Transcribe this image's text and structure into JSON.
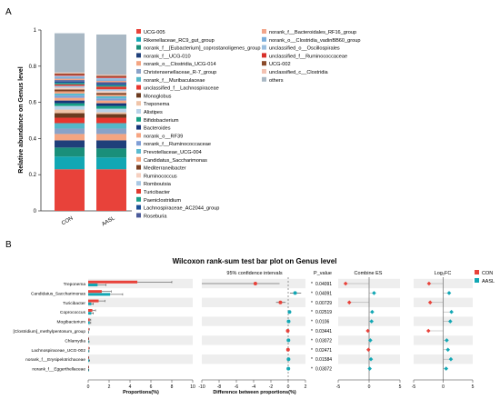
{
  "panel_a_label": "A",
  "panel_b_label": "B",
  "chart_data": [
    {
      "type": "bar",
      "stacked": true,
      "ylabel": "Relative abundance on Genus level",
      "ylim": [
        0,
        1
      ],
      "yticks": [
        "0",
        "0.2",
        "0.4",
        "0.6",
        "0.8",
        "1"
      ],
      "categories": [
        "CON",
        "AASL"
      ],
      "legend_position": "right",
      "series": [
        {
          "name": "UCG-005",
          "color": "#e8423a",
          "values": [
            0.23,
            0.23
          ]
        },
        {
          "name": "Rikenellaceae_RC9_gut_group",
          "color": "#12a7b4",
          "values": [
            0.07,
            0.065
          ]
        },
        {
          "name": "norank_f__[Eubacterium]_coprostanoligenes_group",
          "color": "#1a8f7a",
          "values": [
            0.05,
            0.05
          ]
        },
        {
          "name": "norank_f__UCG-010",
          "color": "#1f3f7a",
          "values": [
            0.04,
            0.045
          ]
        },
        {
          "name": "norank_o__Clostridia_UCG-014",
          "color": "#f4a582",
          "values": [
            0.035,
            0.035
          ]
        },
        {
          "name": "Christensenellaceae_R-7_group",
          "color": "#8aa2c8",
          "values": [
            0.03,
            0.03
          ]
        },
        {
          "name": "norank_f__Muribaculaceae",
          "color": "#55b8c8",
          "values": [
            0.03,
            0.03
          ]
        },
        {
          "name": "unclassified_f__Lachnospiraceae",
          "color": "#e8372f",
          "values": [
            0.03,
            0.03
          ]
        },
        {
          "name": "Monoglobus",
          "color": "#6b3b1f",
          "values": [
            0.025,
            0.02
          ]
        },
        {
          "name": "Treponema",
          "color": "#f0c4a8",
          "values": [
            0.02,
            0.01
          ]
        },
        {
          "name": "Alistipes",
          "color": "#b8d2e8",
          "values": [
            0.02,
            0.02
          ]
        },
        {
          "name": "Bifidobacterium",
          "color": "#16a085",
          "values": [
            0.015,
            0.015
          ]
        },
        {
          "name": "Bacteroides",
          "color": "#16357a",
          "values": [
            0.015,
            0.015
          ]
        },
        {
          "name": "norank_o__RF39",
          "color": "#f7a582",
          "values": [
            0.015,
            0.015
          ]
        },
        {
          "name": "norank_f__Ruminococcaceae",
          "color": "#7f9ed6",
          "values": [
            0.012,
            0.012
          ]
        },
        {
          "name": "Prevotellaceae_UCG-004",
          "color": "#5abbd0",
          "values": [
            0.012,
            0.012
          ]
        },
        {
          "name": "Candidatus_Saccharimonas",
          "color": "#f2a07a",
          "values": [
            0.012,
            0.008
          ]
        },
        {
          "name": "Mediterraneibacter",
          "color": "#7a3f22",
          "values": [
            0.01,
            0.01
          ]
        },
        {
          "name": "Ruminococcus",
          "color": "#f6d0c0",
          "values": [
            0.01,
            0.01
          ]
        },
        {
          "name": "Romboutsia",
          "color": "#a9c8e4",
          "values": [
            0.01,
            0.01
          ]
        },
        {
          "name": "Turicibacter",
          "color": "#e03a2f",
          "values": [
            0.008,
            0.015
          ]
        },
        {
          "name": "Paeniclostridium",
          "color": "#1a9f8a",
          "values": [
            0.008,
            0.008
          ]
        },
        {
          "name": "Lachnospiraceae_AC2044_group",
          "color": "#1c4f96",
          "values": [
            0.008,
            0.008
          ]
        },
        {
          "name": "Roseburia",
          "color": "#4a5a9a",
          "values": [
            0.008,
            0.008
          ]
        },
        {
          "name": "norank_f__Bacteroidales_RF16_group",
          "color": "#f2a58a",
          "values": [
            0.008,
            0.008
          ]
        },
        {
          "name": "norank_o__Clostridia_vadinBB60_group",
          "color": "#7aaedb",
          "values": [
            0.008,
            0.008
          ]
        },
        {
          "name": "unclassified_o__Oscillospirales",
          "color": "#9bbfdf",
          "values": [
            0.008,
            0.008
          ]
        },
        {
          "name": "unclassified_f__Ruminococcaceae",
          "color": "#d8302a",
          "values": [
            0.006,
            0.006
          ]
        },
        {
          "name": "UCG-002",
          "color": "#8a4a2a",
          "values": [
            0.006,
            0.006
          ]
        },
        {
          "name": "unclassified_c__Clostridia",
          "color": "#f3c2b2",
          "values": [
            0.006,
            0.006
          ]
        },
        {
          "name": "others",
          "color": "#a9b8c4",
          "values": [
            0.217,
            0.222
          ]
        }
      ]
    },
    {
      "type": "bar",
      "orientation": "horizontal",
      "title": "Wilcoxon rank-sum test bar plot on Genus level",
      "xlabel": "Proportions(%)",
      "xlim": [
        0,
        10
      ],
      "xticks": [
        "0",
        "2",
        "4",
        "6",
        "8",
        "10"
      ],
      "categories": [
        "Treponema",
        "Candidatus_Saccharimonas",
        "Turicibacter",
        "Coprococcus",
        "Mogibacterium",
        "[Clostridium]_methylpentosum_group",
        "Chlamydia",
        "Lachnospiraceae_UCG-002",
        "norank_f__Erysipelotrichaceae",
        "norank_f__Eggerthellaceae"
      ],
      "legend_position": "right",
      "series": [
        {
          "name": "CON",
          "color": "#e8423a",
          "values": [
            4.7,
            1.3,
            1.0,
            0.4,
            0.15,
            0.06,
            0.03,
            0.06,
            0.04,
            0.03
          ],
          "err": [
            3.3,
            0.9,
            0.6,
            0.3,
            0.1,
            0.05,
            0.03,
            0.05,
            0.03,
            0.03
          ]
        },
        {
          "name": "AASL",
          "color": "#12a7b4",
          "values": [
            0.9,
            2.1,
            0.3,
            0.3,
            0.15,
            0.02,
            0.05,
            0.05,
            0.08,
            0.04
          ],
          "err": [
            0.8,
            1.2,
            0.2,
            0.2,
            0.1,
            0.02,
            0.04,
            0.04,
            0.06,
            0.03
          ]
        }
      ]
    },
    {
      "type": "scatter",
      "title": "95% confidence intervals",
      "xlabel": "Difference between proportions(%)",
      "xlim": [
        -10,
        2
      ],
      "xticks": [
        "-10",
        "-8",
        "-6",
        "-4",
        "-2",
        "0",
        "2"
      ],
      "points": [
        {
          "label": "Treponema",
          "value": -3.8,
          "low": -10,
          "high": -1.0,
          "group": "CON"
        },
        {
          "label": "Candidatus_Saccharimonas",
          "value": 0.8,
          "low": 0.2,
          "high": 1.5,
          "group": "AASL"
        },
        {
          "label": "Turicibacter",
          "value": -0.9,
          "low": -1.4,
          "high": -0.3,
          "group": "CON"
        },
        {
          "label": "Coprococcus",
          "value": 0.15,
          "low": -0.05,
          "high": 0.35,
          "group": "AASL"
        },
        {
          "label": "Mogibacterium",
          "value": 0.05,
          "low": 0.0,
          "high": 0.1,
          "group": "AASL"
        },
        {
          "label": "[Clostridium]_methylpentosum_group",
          "value": -0.05,
          "low": -0.1,
          "high": 0.0,
          "group": "CON"
        },
        {
          "label": "Chlamydia",
          "value": 0.03,
          "low": 0.0,
          "high": 0.06,
          "group": "AASL"
        },
        {
          "label": "Lachnospiraceae_UCG-002",
          "value": -0.02,
          "low": -0.05,
          "high": 0.0,
          "group": "CON"
        },
        {
          "label": "norank_f__Erysipelotrichaceae",
          "value": 0.04,
          "low": 0.0,
          "high": 0.08,
          "group": "AASL"
        },
        {
          "label": "norank_f__Eggerthellaceae",
          "value": 0.02,
          "low": 0.0,
          "high": 0.04,
          "group": "AASL"
        }
      ]
    },
    {
      "type": "table",
      "header": "P_value",
      "values": [
        "0.04091",
        "0.04091",
        "0.00729",
        "0.02519",
        "0.0106",
        "0.03441",
        "0.03072",
        "0.02471",
        "0.01584",
        "0.03072"
      ]
    },
    {
      "type": "scatter",
      "title": "Combine ES",
      "xlim": [
        -5,
        5
      ],
      "xticks": [
        "-5",
        "0",
        "5"
      ],
      "points": [
        {
          "value": -3.8,
          "group": "CON"
        },
        {
          "value": 0.8,
          "group": "AASL"
        },
        {
          "value": -3.2,
          "group": "CON"
        },
        {
          "value": 0.5,
          "group": "AASL"
        },
        {
          "value": 0.4,
          "group": "AASL"
        },
        {
          "value": -0.2,
          "group": "CON"
        },
        {
          "value": 0.2,
          "group": "AASL"
        },
        {
          "value": -0.1,
          "group": "CON"
        },
        {
          "value": 0.3,
          "group": "AASL"
        },
        {
          "value": 0.1,
          "group": "AASL"
        }
      ]
    },
    {
      "type": "scatter",
      "title": "Log₂FC",
      "xlim": [
        -5,
        5
      ],
      "xticks": [
        "-5",
        "0",
        "5"
      ],
      "points": [
        {
          "value": -2.4,
          "group": "CON"
        },
        {
          "value": 1.0,
          "group": "AASL"
        },
        {
          "value": -2.2,
          "group": "CON"
        },
        {
          "value": 1.4,
          "group": "AASL"
        },
        {
          "value": 1.2,
          "group": "AASL"
        },
        {
          "value": -2.5,
          "group": "CON"
        },
        {
          "value": 0.6,
          "group": "AASL"
        },
        {
          "value": 0.8,
          "group": "AASL"
        },
        {
          "value": 1.3,
          "group": "AASL"
        },
        {
          "value": 0.5,
          "group": "AASL"
        }
      ]
    }
  ],
  "legend_b": [
    {
      "name": "CON",
      "color": "#e8423a"
    },
    {
      "name": "AASL",
      "color": "#12a7b4"
    }
  ]
}
